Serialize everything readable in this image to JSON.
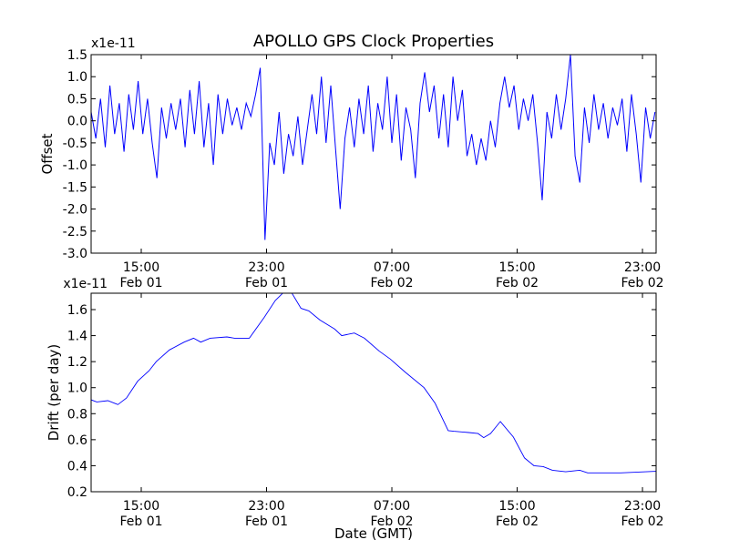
{
  "chart_data": [
    {
      "type": "line",
      "title": "APOLLO GPS Clock Properties",
      "ylabel": "Offset",
      "xlabel": "",
      "scale_label": "x1e-11",
      "ylim": [
        -3.0,
        1.5
      ],
      "xlim": [
        11.8,
        47.87
      ],
      "x_unit": "hours since Feb 01 00:00 GMT",
      "yticks": [
        1.5,
        1.0,
        0.5,
        0.0,
        -0.5,
        -1.0,
        -1.5,
        -2.0,
        -2.5,
        -3.0
      ],
      "ytick_labels": [
        "1.5",
        "1.0",
        "0.5",
        "0.0",
        "-0.5",
        "-1.0",
        "-1.5",
        "-2.0",
        "-2.5",
        "-3.0"
      ],
      "xticks": [
        15,
        23,
        31,
        39,
        47
      ],
      "xtick_labels": [
        [
          "15:00",
          "Feb 01"
        ],
        [
          "23:00",
          "Feb 01"
        ],
        [
          "07:00",
          "Feb 02"
        ],
        [
          "15:00",
          "Feb 02"
        ],
        [
          "23:00",
          "Feb 02"
        ]
      ],
      "color": "#0000ff",
      "x_start": 11.8,
      "x_step": 0.3,
      "values": [
        0.2,
        -0.4,
        0.5,
        -0.6,
        0.8,
        -0.3,
        0.4,
        -0.7,
        0.6,
        -0.2,
        0.9,
        -0.3,
        0.5,
        -0.5,
        -1.3,
        0.3,
        -0.4,
        0.4,
        -0.2,
        0.5,
        -0.6,
        0.7,
        -0.3,
        0.9,
        -0.6,
        0.4,
        -1.0,
        0.6,
        -0.3,
        0.5,
        -0.1,
        0.3,
        -0.2,
        0.4,
        0.1,
        0.6,
        1.2,
        -2.7,
        -0.5,
        -1.0,
        0.2,
        -1.2,
        -0.3,
        -0.8,
        0.1,
        -1.0,
        -0.2,
        0.6,
        -0.3,
        1.0,
        -0.5,
        0.8,
        -0.6,
        -2.0,
        -0.4,
        0.3,
        -0.6,
        0.5,
        -0.3,
        0.8,
        -0.7,
        0.4,
        -0.2,
        1.0,
        -0.5,
        0.6,
        -0.9,
        0.3,
        -0.2,
        -1.3,
        0.4,
        1.1,
        0.2,
        0.8,
        -0.4,
        0.6,
        -0.6,
        1.0,
        0.0,
        0.7,
        -0.8,
        -0.3,
        -1.0,
        -0.4,
        -0.9,
        0.0,
        -0.6,
        0.4,
        1.0,
        0.3,
        0.8,
        -0.2,
        0.5,
        0.0,
        0.6,
        -0.5,
        -1.8,
        0.2,
        -0.4,
        0.6,
        -0.2,
        0.5,
        1.5,
        -0.8,
        -1.4,
        0.3,
        -0.5,
        0.6,
        -0.2,
        0.4,
        -0.4,
        0.3,
        -0.1,
        0.5,
        -0.7,
        0.6,
        -0.3,
        -1.4,
        0.3,
        -0.4,
        0.2
      ]
    },
    {
      "type": "line",
      "title": "",
      "ylabel": "Drift (per day)",
      "xlabel": "Date (GMT)",
      "scale_label": "x1e-11",
      "ylim": [
        0.2,
        1.726
      ],
      "xlim": [
        11.8,
        47.87
      ],
      "x_unit": "hours since Feb 01 00:00 GMT",
      "yticks": [
        1.6,
        1.4,
        1.2,
        1.0,
        0.8,
        0.6,
        0.4,
        0.2
      ],
      "ytick_labels": [
        "1.6",
        "1.4",
        "1.2",
        "1.0",
        "0.8",
        "0.6",
        "0.4",
        "0.2"
      ],
      "xticks": [
        15,
        23,
        31,
        39,
        47
      ],
      "xtick_labels": [
        [
          "15:00",
          "Feb 01"
        ],
        [
          "23:00",
          "Feb 01"
        ],
        [
          "07:00",
          "Feb 02"
        ],
        [
          "15:00",
          "Feb 02"
        ],
        [
          "23:00",
          "Feb 02"
        ]
      ],
      "color": "#0000ff",
      "x": [
        11.8,
        12.16,
        12.87,
        13.51,
        14.06,
        14.77,
        15.5,
        15.96,
        16.8,
        17.74,
        18.34,
        18.8,
        19.4,
        20.47,
        20.95,
        21.9,
        22.85,
        23.56,
        24.15,
        24.6,
        25.2,
        25.7,
        26.4,
        27.35,
        27.8,
        28.6,
        29.25,
        30.2,
        30.9,
        31.85,
        33.05,
        33.76,
        34.6,
        34.95,
        35.9,
        36.5,
        36.86,
        37.3,
        37.93,
        38.76,
        39.47,
        40.07,
        40.66,
        41.25,
        42.1,
        43.0,
        43.5,
        45.6,
        47.87
      ],
      "values": [
        0.906,
        0.89,
        0.9,
        0.87,
        0.92,
        1.05,
        1.13,
        1.2,
        1.29,
        1.35,
        1.38,
        1.35,
        1.38,
        1.39,
        1.38,
        1.38,
        1.54,
        1.67,
        1.74,
        1.73,
        1.61,
        1.59,
        1.52,
        1.45,
        1.4,
        1.42,
        1.38,
        1.28,
        1.22,
        1.12,
        1.0,
        0.88,
        0.67,
        0.665,
        0.655,
        0.647,
        0.616,
        0.647,
        0.74,
        0.62,
        0.46,
        0.4,
        0.393,
        0.365,
        0.353,
        0.365,
        0.345,
        0.345,
        0.357
      ]
    }
  ]
}
